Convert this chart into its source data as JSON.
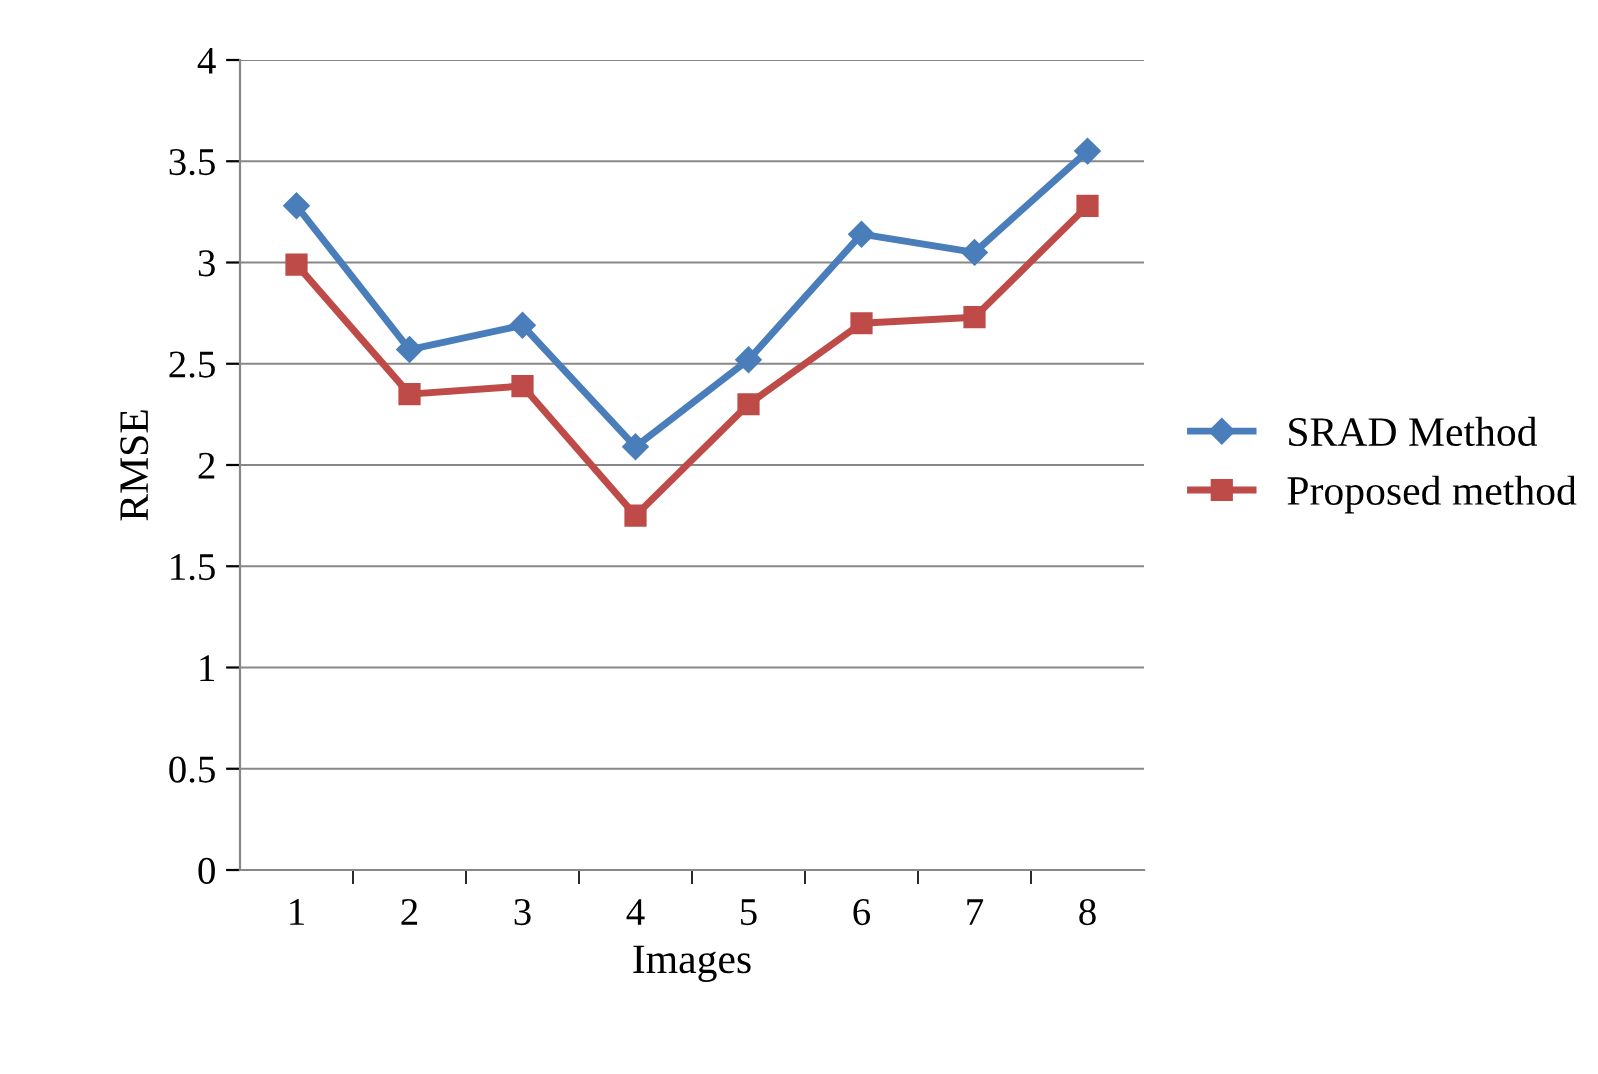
{
  "chart_data": {
    "type": "line",
    "xlabel": "Images",
    "ylabel": "RMSE",
    "categories": [
      "1",
      "2",
      "3",
      "4",
      "5",
      "6",
      "7",
      "8"
    ],
    "series": [
      {
        "name": "SRAD Method",
        "color": "#4a7ebb",
        "marker": "diamond",
        "values": [
          3.28,
          2.57,
          2.69,
          2.09,
          2.52,
          3.14,
          3.05,
          3.55
        ]
      },
      {
        "name": "Proposed method",
        "color": "#be4b48",
        "marker": "square",
        "values": [
          2.99,
          2.35,
          2.39,
          1.75,
          2.3,
          2.7,
          2.73,
          3.28
        ]
      }
    ],
    "ylim": [
      0,
      4
    ],
    "yticks": [
      0,
      0.5,
      1,
      1.5,
      2,
      2.5,
      3,
      3.5,
      4
    ],
    "grid": "y",
    "legend": "right",
    "line_style": "solid"
  }
}
